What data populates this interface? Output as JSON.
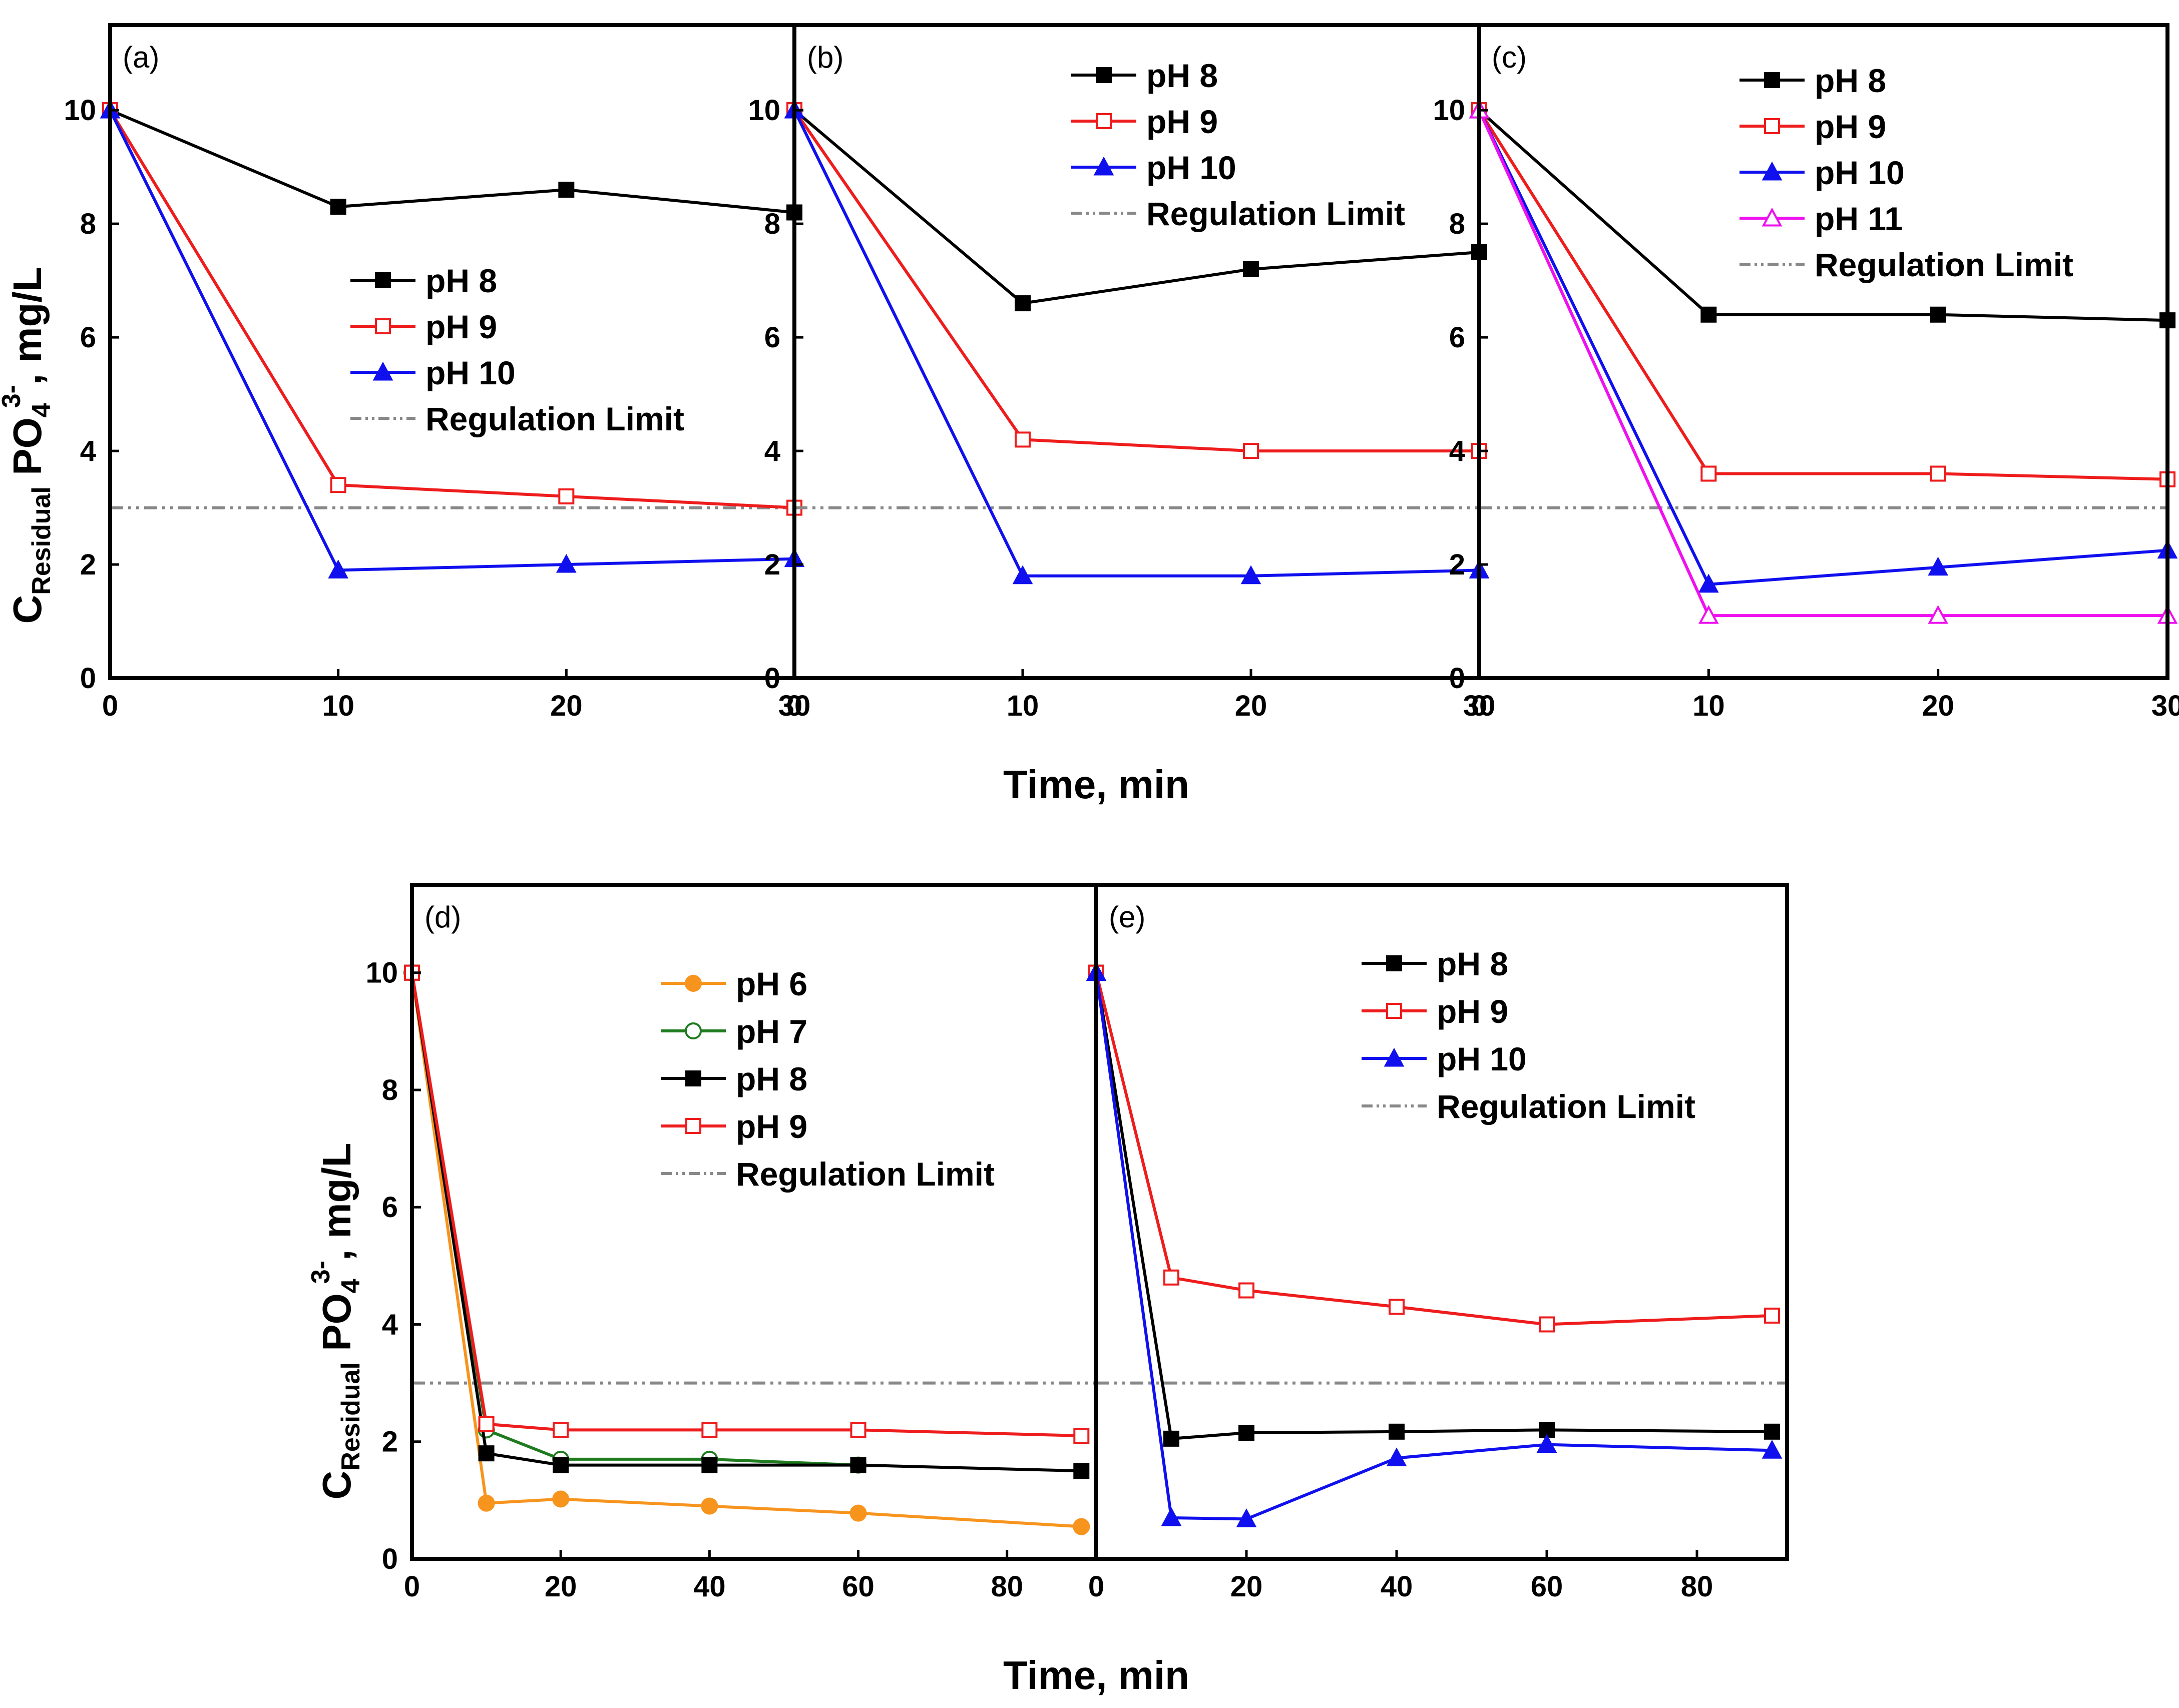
{
  "figure": {
    "x_axis_title": "Time, min",
    "y_axis_title": {
      "c": "C",
      "subscript": "Residual",
      "po": " PO",
      "four": "4",
      "charge": "3-",
      "unit": ", mg/L"
    },
    "regulation_limit_value": 3
  },
  "chart_data": [
    {
      "type": "line",
      "label": "(a)",
      "xlim": [
        0,
        30
      ],
      "ylim": [
        0,
        11.5
      ],
      "xticks": [
        0,
        10,
        20,
        30
      ],
      "yticks": [
        0,
        2,
        4,
        6,
        8,
        10
      ],
      "legend": "center-right",
      "x": [
        0,
        10,
        20,
        30
      ],
      "series": [
        {
          "name": "pH 8",
          "color": "#000000",
          "marker": "square-filled",
          "values": [
            10,
            8.3,
            8.6,
            8.2
          ]
        },
        {
          "name": "pH 9",
          "color": "#ee1c1c",
          "marker": "square-open",
          "values": [
            10,
            3.4,
            3.2,
            3.0
          ]
        },
        {
          "name": "pH 10",
          "color": "#1010ee",
          "marker": "triangle-filled",
          "values": [
            10,
            1.9,
            2.0,
            2.1
          ]
        }
      ],
      "reference_line": {
        "name": "Regulation Limit",
        "value": 3,
        "color": "#888888",
        "style": "dash-dot-dot"
      }
    },
    {
      "type": "line",
      "label": "(b)",
      "xlim": [
        0,
        30
      ],
      "ylim": [
        0,
        11.5
      ],
      "xticks": [
        0,
        10,
        20,
        30
      ],
      "yticks": [
        0,
        2,
        4,
        6,
        8,
        10
      ],
      "legend": "top-right",
      "x": [
        0,
        10,
        20,
        30
      ],
      "series": [
        {
          "name": "pH 8",
          "color": "#000000",
          "marker": "square-filled",
          "values": [
            10,
            6.6,
            7.2,
            7.5
          ]
        },
        {
          "name": "pH 9",
          "color": "#ee1c1c",
          "marker": "square-open",
          "values": [
            10,
            4.2,
            4.0,
            4.0
          ]
        },
        {
          "name": "pH 10",
          "color": "#1010ee",
          "marker": "triangle-filled",
          "values": [
            10,
            1.8,
            1.8,
            1.9
          ]
        }
      ],
      "reference_line": {
        "name": "Regulation Limit",
        "value": 3,
        "color": "#888888",
        "style": "dash-dot-dot"
      }
    },
    {
      "type": "line",
      "label": "(c)",
      "xlim": [
        0,
        30
      ],
      "ylim": [
        0,
        11.5
      ],
      "xticks": [
        0,
        10,
        20,
        30
      ],
      "yticks": [
        0,
        2,
        4,
        6,
        8,
        10
      ],
      "legend": "top-right",
      "x": [
        0,
        10,
        20,
        30
      ],
      "series": [
        {
          "name": "pH 8",
          "color": "#000000",
          "marker": "square-filled",
          "values": [
            10,
            6.4,
            6.4,
            6.3
          ]
        },
        {
          "name": "pH 9",
          "color": "#ee1c1c",
          "marker": "square-open",
          "values": [
            10,
            3.6,
            3.6,
            3.5
          ]
        },
        {
          "name": "pH 10",
          "color": "#1010ee",
          "marker": "triangle-filled",
          "values": [
            10,
            1.65,
            1.95,
            2.25
          ]
        },
        {
          "name": "pH 11",
          "color": "#ee10ee",
          "marker": "triangle-open",
          "values": [
            10,
            1.1,
            1.1,
            1.1
          ]
        }
      ],
      "reference_line": {
        "name": "Regulation Limit",
        "value": 3,
        "color": "#888888",
        "style": "dash-dot-dot"
      }
    },
    {
      "type": "line",
      "label": "(d)",
      "xlim": [
        0,
        92
      ],
      "ylim": [
        0,
        11.5
      ],
      "xticks": [
        0,
        20,
        40,
        60,
        80
      ],
      "yticks": [
        0,
        2,
        4,
        6,
        8,
        10
      ],
      "legend": "top-right",
      "x": [
        0,
        10,
        20,
        40,
        60,
        90
      ],
      "series": [
        {
          "name": "pH 6",
          "color": "#f7941d",
          "marker": "circle-filled",
          "values": [
            10,
            0.95,
            1.02,
            0.9,
            0.78,
            0.55
          ]
        },
        {
          "name": "pH 7",
          "color": "#1e7b1e",
          "marker": "circle-open",
          "values": [
            10,
            2.2,
            1.7,
            1.7,
            1.6,
            null
          ]
        },
        {
          "name": "pH 8",
          "color": "#000000",
          "marker": "square-filled",
          "values": [
            10,
            1.8,
            1.6,
            1.6,
            1.6,
            1.5
          ]
        },
        {
          "name": "pH 9",
          "color": "#ee1c1c",
          "marker": "square-open",
          "values": [
            10,
            2.3,
            2.2,
            2.2,
            2.2,
            2.1
          ]
        }
      ],
      "reference_line": {
        "name": "Regulation Limit",
        "value": 3,
        "color": "#888888",
        "style": "dash-dot-dot"
      }
    },
    {
      "type": "line",
      "label": "(e)",
      "xlim": [
        0,
        92
      ],
      "ylim": [
        0,
        11.5
      ],
      "xticks": [
        0,
        20,
        40,
        60,
        80
      ],
      "yticks": [],
      "legend": "top-right",
      "x": [
        0,
        10,
        20,
        40,
        60,
        90
      ],
      "series": [
        {
          "name": "pH 8",
          "color": "#000000",
          "marker": "square-filled",
          "values": [
            10,
            2.05,
            2.15,
            2.17,
            2.2,
            2.17
          ]
        },
        {
          "name": "pH 9",
          "color": "#ee1c1c",
          "marker": "square-open",
          "values": [
            10,
            4.8,
            4.58,
            4.3,
            4.0,
            4.15
          ]
        },
        {
          "name": "pH 10",
          "color": "#1010ee",
          "marker": "triangle-filled",
          "values": [
            10,
            0.7,
            0.68,
            1.72,
            1.95,
            1.85
          ]
        }
      ],
      "reference_line": {
        "name": "Regulation Limit",
        "value": 3,
        "color": "#888888",
        "style": "dash-dot-dot"
      }
    }
  ]
}
